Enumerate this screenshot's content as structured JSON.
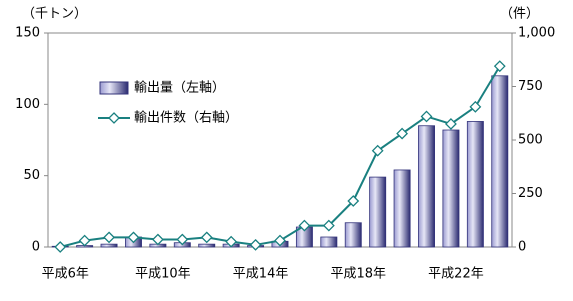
{
  "chart_data": {
    "type": "bar",
    "y_label": "（千トン）",
    "y2_label": "（件）",
    "categories": [
      "平成6年",
      null,
      null,
      null,
      "平成10年",
      null,
      null,
      null,
      "平成14年",
      null,
      null,
      null,
      "平成18年",
      null,
      null,
      null,
      "平成22年",
      null,
      null
    ],
    "series": [
      {
        "name": "輸出量（左軸）",
        "type": "bar",
        "color": "#33337a",
        "values": [
          0.5,
          1,
          2,
          7,
          2,
          3,
          2,
          2,
          1,
          4,
          14,
          7,
          17,
          49,
          54,
          85,
          82,
          88,
          120
        ]
      },
      {
        "name": "輸出件数（右軸）",
        "type": "line",
        "axis": "y2",
        "color": "#1a8080",
        "values": [
          0,
          30,
          45,
          45,
          35,
          35,
          45,
          25,
          10,
          30,
          100,
          100,
          215,
          450,
          530,
          610,
          575,
          655,
          845
        ]
      }
    ],
    "ylim": [
      0,
      150
    ],
    "yticks": [
      0,
      50,
      100,
      150
    ],
    "y2lim": [
      0,
      1000
    ],
    "y2ticks": [
      0,
      250,
      500,
      750,
      {
        "value": 1000,
        "label": "1,000"
      }
    ],
    "grid": false
  }
}
